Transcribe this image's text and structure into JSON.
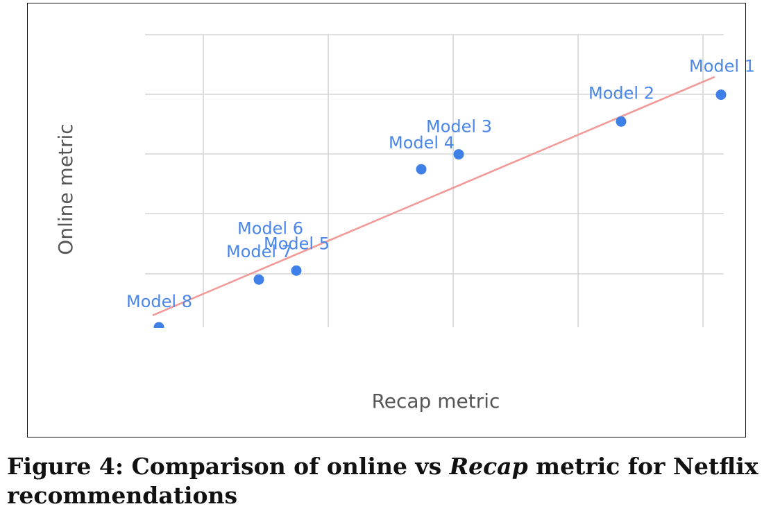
{
  "chart_data": {
    "type": "scatter",
    "title": "",
    "xlabel": "Recap metric",
    "ylabel": "Online metric",
    "xlim": [
      0,
      9.3
    ],
    "ylim": [
      0,
      5
    ],
    "grid": true,
    "points": [
      {
        "label": "Model 1",
        "x": 9.1,
        "y": 3.9
      },
      {
        "label": "Model 2",
        "x": 7.5,
        "y": 3.45
      },
      {
        "label": "Model 3",
        "x": 4.9,
        "y": 2.9
      },
      {
        "label": "Model 4",
        "x": 4.3,
        "y": 2.65
      },
      {
        "label": "Model 5",
        "x": 2.3,
        "y": 0.95
      },
      {
        "label": "Model 6",
        "x": 2.3,
        "y": 0.95
      },
      {
        "label": "Model 7",
        "x": 1.7,
        "y": 0.8
      },
      {
        "label": "Model 8",
        "x": 0.1,
        "y": 0.0
      }
    ],
    "trend_line": {
      "from": {
        "x": 0,
        "y": 0.2
      },
      "to": {
        "x": 9.0,
        "y": 4.2
      }
    }
  },
  "caption": {
    "prefix": "Figure 4: Comparison of online vs ",
    "emphasis": "Recap",
    "suffix": " metric for Netflix recommendations"
  }
}
